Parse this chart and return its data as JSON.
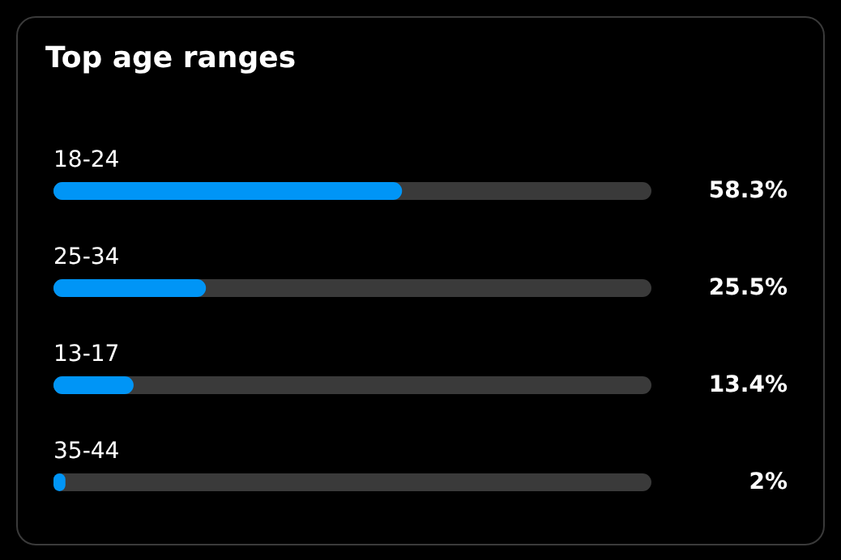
{
  "chart_data": {
    "type": "bar",
    "orientation": "horizontal",
    "title": "Top age ranges",
    "categories": [
      "18-24",
      "25-34",
      "13-17",
      "35-44"
    ],
    "values": [
      58.3,
      25.5,
      13.4,
      2
    ],
    "value_labels": [
      "58.3%",
      "25.5%",
      "13.4%",
      "2%"
    ],
    "color": "#0095f6",
    "xlim": [
      0,
      100
    ],
    "tick_labels": false
  }
}
